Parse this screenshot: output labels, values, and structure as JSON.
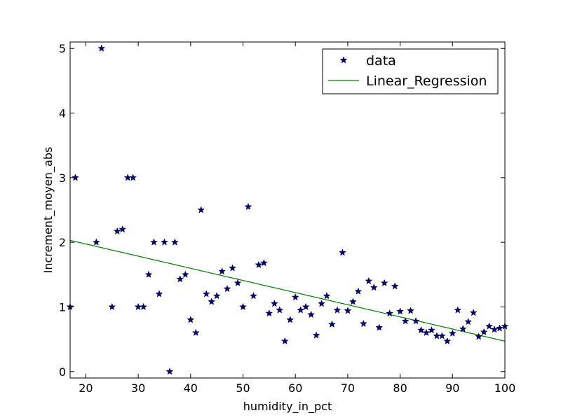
{
  "chart_data": {
    "type": "scatter",
    "title": "",
    "xlabel": "humidity_in_pct",
    "ylabel": "Increment_moyen_abs",
    "xlim": [
      17,
      100
    ],
    "ylim": [
      -0.1,
      5.1
    ],
    "x_ticks": [
      20,
      30,
      40,
      50,
      60,
      70,
      80,
      90,
      100
    ],
    "y_ticks": [
      0,
      1,
      2,
      3,
      4,
      5
    ],
    "grid": false,
    "legend_position": "top-right",
    "colors": {
      "data": "#00008b",
      "regression": "#008000"
    },
    "series": [
      {
        "name": "data",
        "type": "scatter",
        "marker": "star",
        "points": [
          [
            17,
            1.0
          ],
          [
            18,
            3.0
          ],
          [
            22,
            2.0
          ],
          [
            23,
            5.0
          ],
          [
            25,
            1.0
          ],
          [
            26,
            2.17
          ],
          [
            27,
            2.2
          ],
          [
            28,
            3.0
          ],
          [
            29,
            3.0
          ],
          [
            30,
            1.0
          ],
          [
            31,
            1.0
          ],
          [
            32,
            1.5
          ],
          [
            33,
            2.0
          ],
          [
            34,
            1.2
          ],
          [
            35,
            2.0
          ],
          [
            36,
            0.0
          ],
          [
            37,
            2.0
          ],
          [
            38,
            1.43
          ],
          [
            39,
            1.5
          ],
          [
            40,
            0.8
          ],
          [
            41,
            0.6
          ],
          [
            42,
            2.5
          ],
          [
            43,
            1.2
          ],
          [
            44,
            1.08
          ],
          [
            45,
            1.17
          ],
          [
            46,
            1.55
          ],
          [
            47,
            1.28
          ],
          [
            48,
            1.6
          ],
          [
            49,
            1.37
          ],
          [
            50,
            1.0
          ],
          [
            51,
            2.55
          ],
          [
            52,
            1.17
          ],
          [
            53,
            1.65
          ],
          [
            54,
            1.68
          ],
          [
            55,
            0.9
          ],
          [
            56,
            1.05
          ],
          [
            57,
            0.95
          ],
          [
            58,
            0.47
          ],
          [
            59,
            0.8
          ],
          [
            60,
            1.15
          ],
          [
            61,
            0.95
          ],
          [
            62,
            1.0
          ],
          [
            63,
            0.88
          ],
          [
            64,
            0.56
          ],
          [
            65,
            1.05
          ],
          [
            66,
            1.17
          ],
          [
            67,
            0.73
          ],
          [
            68,
            0.95
          ],
          [
            69,
            1.84
          ],
          [
            70,
            0.94
          ],
          [
            71,
            1.08
          ],
          [
            72,
            1.24
          ],
          [
            73,
            0.74
          ],
          [
            74,
            1.4
          ],
          [
            75,
            1.3
          ],
          [
            76,
            0.68
          ],
          [
            77,
            1.37
          ],
          [
            78,
            0.9
          ],
          [
            79,
            1.32
          ],
          [
            80,
            0.93
          ],
          [
            81,
            0.78
          ],
          [
            82,
            0.94
          ],
          [
            83,
            0.78
          ],
          [
            84,
            0.64
          ],
          [
            85,
            0.6
          ],
          [
            86,
            0.64
          ],
          [
            87,
            0.55
          ],
          [
            88,
            0.55
          ],
          [
            89,
            0.47
          ],
          [
            90,
            0.59
          ],
          [
            91,
            0.95
          ],
          [
            92,
            0.66
          ],
          [
            93,
            0.77
          ],
          [
            94,
            0.91
          ],
          [
            95,
            0.54
          ],
          [
            96,
            0.61
          ],
          [
            97,
            0.7
          ],
          [
            98,
            0.65
          ],
          [
            99,
            0.67
          ],
          [
            100,
            0.7
          ]
        ]
      },
      {
        "name": "Linear_Regression",
        "type": "line",
        "points": [
          [
            17,
            2.03
          ],
          [
            100,
            0.47
          ]
        ]
      }
    ]
  }
}
